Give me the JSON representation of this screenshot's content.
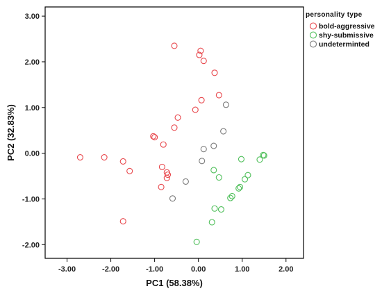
{
  "chart_data": {
    "type": "scatter",
    "title": "",
    "xlabel": "PC1 (58.38%)",
    "ylabel": "PC2 (32.83%)",
    "xlim": [
      -3.5,
      2.4
    ],
    "ylim": [
      -2.3,
      3.2
    ],
    "x_ticks": [
      "-3.00",
      "-2.00",
      "-1.00",
      "0.00",
      "1.00",
      "2.00"
    ],
    "y_ticks": [
      "3.00",
      "2.00",
      "1.00",
      "0.00",
      "-1.00",
      "-2.00"
    ],
    "x_tick_values": [
      -3,
      -2,
      -1,
      0,
      1,
      2
    ],
    "y_tick_values": [
      3,
      2,
      1,
      0,
      -1,
      -2
    ],
    "grid": false,
    "legend": {
      "title": "personality  type",
      "placement": "outside-top-right"
    },
    "series": [
      {
        "name": "bold-aggressive",
        "color": "#e8474c",
        "points": [
          [
            -0.55,
            2.35
          ],
          [
            0.05,
            2.24
          ],
          [
            0.02,
            2.15
          ],
          [
            0.12,
            2.02
          ],
          [
            0.37,
            1.76
          ],
          [
            0.47,
            1.27
          ],
          [
            0.07,
            1.16
          ],
          [
            -0.07,
            0.95
          ],
          [
            -0.47,
            0.78
          ],
          [
            -0.55,
            0.56
          ],
          [
            -1.03,
            0.37
          ],
          [
            -1.0,
            0.35
          ],
          [
            -0.8,
            0.19
          ],
          [
            -2.7,
            -0.09
          ],
          [
            -2.15,
            -0.09
          ],
          [
            -1.72,
            -0.18
          ],
          [
            -1.57,
            -0.39
          ],
          [
            -0.83,
            -0.3
          ],
          [
            -0.72,
            -0.42
          ],
          [
            -0.7,
            -0.47
          ],
          [
            -0.72,
            -0.54
          ],
          [
            -0.85,
            -0.74
          ],
          [
            -1.72,
            -1.49
          ]
        ]
      },
      {
        "name": "shy-submissive",
        "color": "#4fbf5a",
        "points": [
          [
            1.48,
            -0.04
          ],
          [
            1.5,
            -0.05
          ],
          [
            1.4,
            -0.14
          ],
          [
            0.98,
            -0.13
          ],
          [
            0.35,
            -0.37
          ],
          [
            0.47,
            -0.53
          ],
          [
            1.13,
            -0.48
          ],
          [
            1.06,
            -0.57
          ],
          [
            0.95,
            -0.74
          ],
          [
            0.92,
            -0.77
          ],
          [
            0.77,
            -0.94
          ],
          [
            0.73,
            -0.98
          ],
          [
            0.37,
            -1.21
          ],
          [
            0.52,
            -1.23
          ],
          [
            0.31,
            -1.51
          ],
          [
            -0.04,
            -1.94
          ]
        ]
      },
      {
        "name": "undeterminted",
        "color": "#7a7a7a",
        "points": [
          [
            0.63,
            1.06
          ],
          [
            0.57,
            0.48
          ],
          [
            0.35,
            0.16
          ],
          [
            0.12,
            0.09
          ],
          [
            0.08,
            -0.17
          ],
          [
            -0.29,
            -0.62
          ],
          [
            -0.59,
            -0.99
          ]
        ]
      }
    ]
  }
}
